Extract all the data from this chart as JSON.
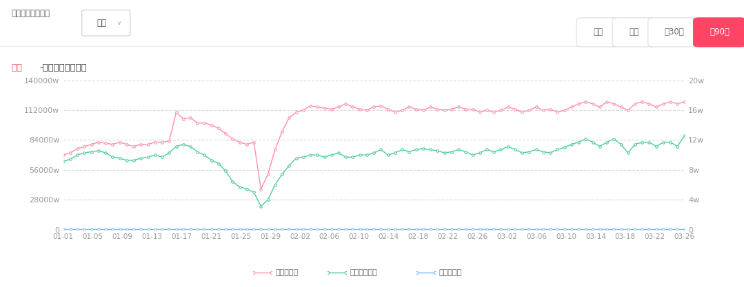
{
  "title": "全部-直播带货场次趋势",
  "subtitle_label": "全部",
  "header_text": "请选择商品类目：",
  "buttons": [
    "今天",
    "昨天",
    "近30天",
    "近90天"
  ],
  "active_button": "近90天",
  "left_yticks": [
    0,
    28000,
    56000,
    84000,
    112000,
    140000
  ],
  "left_ylabels": [
    "0",
    "28000w",
    "56000w",
    "84000w",
    "112000w",
    "140000w"
  ],
  "right_yticks": [
    0,
    4,
    8,
    12,
    16,
    20
  ],
  "right_ylabels": [
    "0",
    "4w",
    "8w",
    "12w",
    "16w",
    "20w"
  ],
  "xtick_labels": [
    "01-01",
    "01-05",
    "01-09",
    "01-13",
    "01-17",
    "01-21",
    "01-25",
    "01-29",
    "02-02",
    "02-06",
    "02-10",
    "02-14",
    "02-18",
    "02-22",
    "02-26",
    "03-02",
    "03-06",
    "03-10",
    "03-14",
    "03-18",
    "03-22",
    "03-26"
  ],
  "bg_color": "#ffffff",
  "grid_color": "#d9d9d9",
  "pink_color": "#FF8FAB",
  "green_color": "#4ECBA0",
  "blue_color": "#7AB8F5",
  "legend_labels": [
    "实时观众数",
    "带货直播间数",
    "上架商品数"
  ],
  "pink_data": [
    70000,
    72000,
    76000,
    78000,
    80000,
    82000,
    81000,
    80000,
    82000,
    80000,
    78000,
    80000,
    80000,
    82000,
    82000,
    83000,
    110000,
    104000,
    105000,
    100000,
    100000,
    98000,
    95000,
    90000,
    85000,
    82000,
    80000,
    82000,
    38000,
    52000,
    75000,
    92000,
    105000,
    110000,
    112000,
    116000,
    115000,
    114000,
    113000,
    115000,
    118000,
    115000,
    113000,
    112000,
    115000,
    116000,
    113000,
    110000,
    112000,
    115000,
    113000,
    112000,
    115000,
    113000,
    112000,
    113000,
    115000,
    113000,
    113000,
    110000,
    112000,
    110000,
    112000,
    115000,
    113000,
    110000,
    112000,
    115000,
    112000,
    113000,
    110000,
    112000,
    115000,
    118000,
    120000,
    118000,
    115000,
    120000,
    118000,
    115000,
    112000,
    118000,
    120000,
    118000,
    115000,
    118000,
    120000,
    118000,
    120000
  ],
  "green_data": [
    64000,
    66000,
    70000,
    72000,
    73000,
    74000,
    72000,
    68000,
    67000,
    65000,
    65000,
    67000,
    68000,
    70000,
    68000,
    72000,
    78000,
    80000,
    78000,
    73000,
    70000,
    65000,
    62000,
    55000,
    45000,
    40000,
    38000,
    35000,
    22000,
    28000,
    42000,
    52000,
    60000,
    67000,
    68000,
    70000,
    70000,
    68000,
    70000,
    72000,
    68000,
    68000,
    70000,
    70000,
    72000,
    75000,
    70000,
    72000,
    75000,
    73000,
    75000,
    76000,
    75000,
    74000,
    72000,
    73000,
    75000,
    73000,
    70000,
    72000,
    75000,
    73000,
    75000,
    78000,
    75000,
    72000,
    73000,
    75000,
    73000,
    72000,
    75000,
    77000,
    80000,
    82000,
    85000,
    82000,
    78000,
    82000,
    85000,
    80000,
    72000,
    80000,
    82000,
    82000,
    78000,
    82000,
    82000,
    78000,
    88000
  ],
  "blue_data": [
    150,
    150,
    150,
    150,
    150,
    150,
    150,
    150,
    150,
    150,
    150,
    150,
    150,
    150,
    150,
    150,
    150,
    150,
    150,
    150,
    150,
    150,
    150,
    150,
    150,
    150,
    150,
    150,
    150,
    150,
    150,
    150,
    150,
    150,
    150,
    150,
    150,
    150,
    150,
    150,
    150,
    150,
    150,
    150,
    150,
    150,
    150,
    150,
    150,
    150,
    150,
    150,
    150,
    150,
    150,
    150,
    150,
    150,
    150,
    150,
    150,
    150,
    150,
    150,
    150,
    150,
    150,
    150,
    150,
    150,
    150,
    150,
    150,
    150,
    150,
    150,
    150,
    150,
    150,
    150,
    150,
    150,
    150,
    150,
    150,
    150,
    150,
    150,
    150
  ]
}
